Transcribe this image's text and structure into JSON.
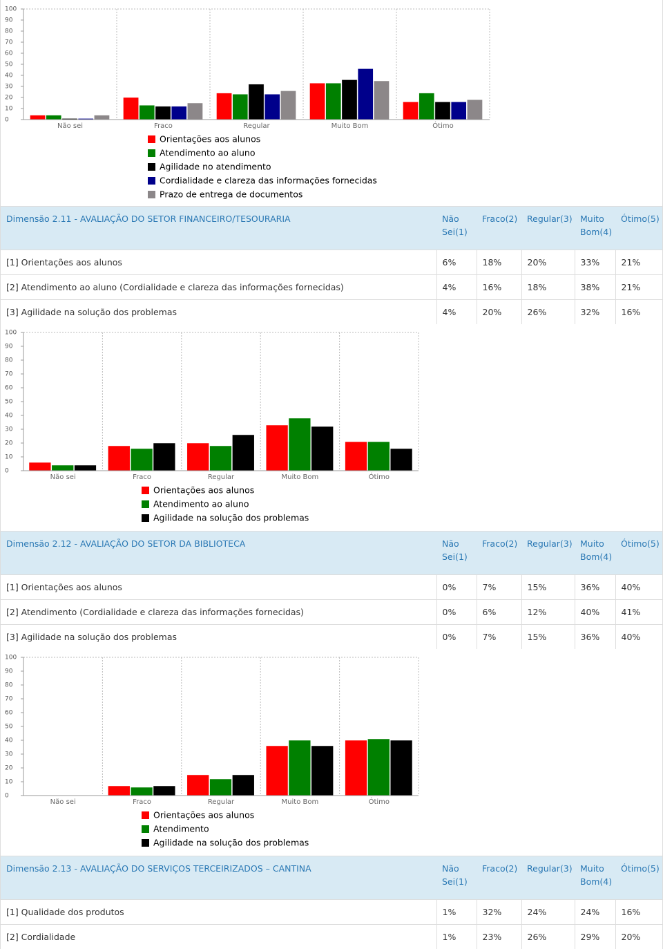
{
  "chart_data": [
    {
      "type": "bar",
      "categories": [
        "Não sei",
        "Fraco",
        "Regular",
        "Muito Bom",
        "Ótimo"
      ],
      "series": [
        {
          "name": "Orientações aos alunos",
          "color": "#ff0000",
          "values": [
            4,
            20,
            24,
            33,
            16
          ]
        },
        {
          "name": "Atendimento ao aluno",
          "color": "#008000",
          "values": [
            4,
            13,
            23,
            33,
            24
          ]
        },
        {
          "name": "Agilidade no atendimento",
          "color": "#000000",
          "values": [
            1,
            12,
            32,
            36,
            16
          ]
        },
        {
          "name": "Cordialidade e clareza das informações fornecidas",
          "color": "#00008b",
          "values": [
            1,
            12,
            23,
            46,
            16
          ]
        },
        {
          "name": "Prazo de entrega de documentos",
          "color": "#8c8789",
          "values": [
            4,
            15,
            26,
            35,
            18
          ]
        }
      ],
      "ylim": [
        0,
        100
      ],
      "yticks": [
        0,
        10,
        20,
        30,
        40,
        50,
        60,
        70,
        80,
        90,
        100
      ]
    },
    {
      "type": "bar",
      "categories": [
        "Não sei",
        "Fraco",
        "Regular",
        "Muito Bom",
        "Ótimo"
      ],
      "series": [
        {
          "name": "Orientações aos alunos",
          "color": "#ff0000",
          "values": [
            6,
            18,
            20,
            33,
            21
          ]
        },
        {
          "name": "Atendimento ao aluno",
          "color": "#008000",
          "values": [
            4,
            16,
            18,
            38,
            21
          ]
        },
        {
          "name": "Agilidade na solução dos problemas",
          "color": "#000000",
          "values": [
            4,
            20,
            26,
            32,
            16
          ]
        }
      ],
      "ylim": [
        0,
        100
      ],
      "yticks": [
        0,
        10,
        20,
        30,
        40,
        50,
        60,
        70,
        80,
        90,
        100
      ]
    },
    {
      "type": "bar",
      "categories": [
        "Não sei",
        "Fraco",
        "Regular",
        "Muito Bom",
        "Ótimo"
      ],
      "series": [
        {
          "name": "Orientações aos alunos",
          "color": "#ff0000",
          "values": [
            0,
            7,
            15,
            36,
            40
          ]
        },
        {
          "name": "Atendimento",
          "color": "#008000",
          "values": [
            0,
            6,
            12,
            40,
            41
          ]
        },
        {
          "name": "Agilidade na solução dos problemas",
          "color": "#000000",
          "values": [
            0,
            7,
            15,
            36,
            40
          ]
        }
      ],
      "ylim": [
        0,
        100
      ],
      "yticks": [
        0,
        10,
        20,
        30,
        40,
        50,
        60,
        70,
        80,
        90,
        100
      ]
    }
  ],
  "tables": [
    {
      "title": "Dimensão 2.11 - AVALIAÇÃO DO SETOR FINANCEIRO/TESOURARIA",
      "columns": [
        "Não Sei(1)",
        "Fraco(2)",
        "Regular(3)",
        "Muito Bom(4)",
        "Ótimo(5)"
      ],
      "rows": [
        [
          "[1] Orientações aos alunos",
          "6%",
          "18%",
          "20%",
          "33%",
          "21%"
        ],
        [
          "[2] Atendimento ao aluno (Cordialidade e clareza das informações fornecidas)",
          "4%",
          "16%",
          "18%",
          "38%",
          "21%"
        ],
        [
          "[3] Agilidade na solução dos problemas",
          "4%",
          "20%",
          "26%",
          "32%",
          "16%"
        ]
      ]
    },
    {
      "title": "Dimensão 2.12 - AVALIAÇÃO DO SETOR DA BIBLIOTECA",
      "columns": [
        "Não Sei(1)",
        "Fraco(2)",
        "Regular(3)",
        "Muito Bom(4)",
        "Ótimo(5)"
      ],
      "rows": [
        [
          "[1] Orientações aos alunos",
          "0%",
          "7%",
          "15%",
          "36%",
          "40%"
        ],
        [
          "[2] Atendimento (Cordialidade e clareza das informações fornecidas)",
          "0%",
          "6%",
          "12%",
          "40%",
          "41%"
        ],
        [
          "[3] Agilidade na solução dos problemas",
          "0%",
          "7%",
          "15%",
          "36%",
          "40%"
        ]
      ]
    },
    {
      "title": "Dimensão 2.13 - AVALIAÇÃO DO SERVIÇOS TERCEIRIZADOS – CANTINA",
      "columns": [
        "Não Sei(1)",
        "Fraco(2)",
        "Regular(3)",
        "Muito Bom(4)",
        "Ótimo(5)"
      ],
      "rows": [
        [
          "[1] Qualidade dos produtos",
          "1%",
          "32%",
          "24%",
          "24%",
          "16%"
        ],
        [
          "[2] Cordialidade",
          "1%",
          "23%",
          "26%",
          "29%",
          "20%"
        ]
      ]
    }
  ]
}
